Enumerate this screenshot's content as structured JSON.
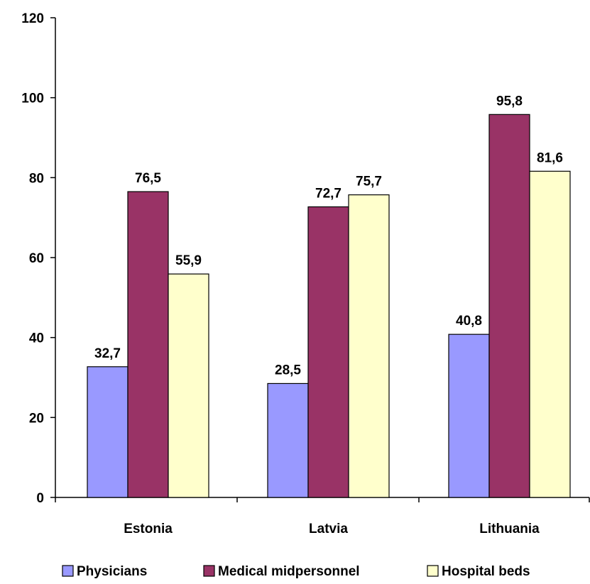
{
  "chart_data": {
    "type": "bar",
    "categories": [
      "Estonia",
      "Latvia",
      "Lithuania"
    ],
    "series": [
      {
        "name": "Physicians",
        "values": [
          32.7,
          28.5,
          40.8
        ],
        "labels": [
          "32,7",
          "28,5",
          "40,8"
        ],
        "color": "#9999ff"
      },
      {
        "name": "Medical midpersonnel",
        "values": [
          76.5,
          72.7,
          95.8
        ],
        "labels": [
          "76,5",
          "72,7",
          "95,8"
        ],
        "color": "#993366"
      },
      {
        "name": "Hospital beds",
        "values": [
          55.9,
          75.7,
          81.6
        ],
        "labels": [
          "55,9",
          "75,7",
          "81,6"
        ],
        "color": "#ffffcc"
      }
    ],
    "yticks": [
      "0",
      "20",
      "40",
      "60",
      "80",
      "100",
      "120"
    ],
    "ylim": [
      0,
      120
    ],
    "grid": false,
    "legend_position": "bottom",
    "bar_outline_color": "#000000"
  }
}
